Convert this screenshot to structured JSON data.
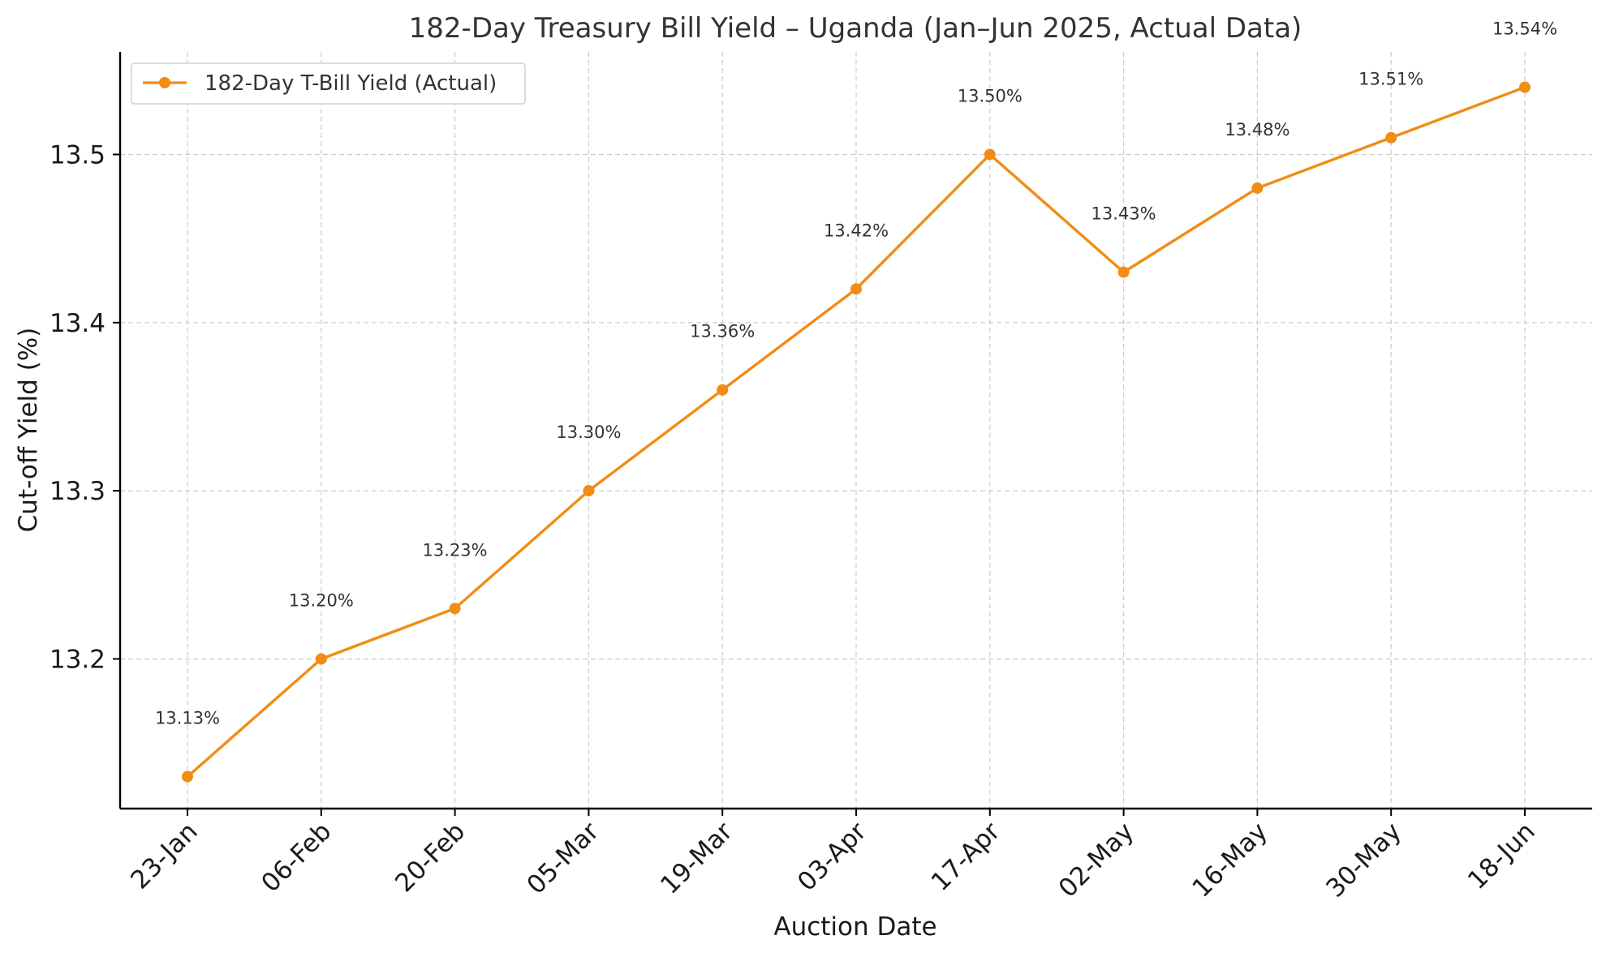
{
  "chart_data": {
    "type": "line",
    "title": "182-Day Treasury Bill Yield – Uganda (Jan–Jun 2025, Actual Data)",
    "xlabel": "Auction Date",
    "ylabel": "Cut-off Yield (%)",
    "categories": [
      "23-Jan",
      "06-Feb",
      "20-Feb",
      "05-Mar",
      "19-Mar",
      "03-Apr",
      "17-Apr",
      "02-May",
      "16-May",
      "30-May",
      "18-Jun"
    ],
    "series": [
      {
        "name": "182-Day T-Bill Yield (Actual)",
        "values": [
          13.13,
          13.2,
          13.23,
          13.3,
          13.36,
          13.42,
          13.5,
          13.43,
          13.48,
          13.51,
          13.54
        ],
        "data_labels": [
          "13.13%",
          "13.20%",
          "13.23%",
          "13.30%",
          "13.36%",
          "13.42%",
          "13.50%",
          "13.43%",
          "13.48%",
          "13.51%",
          "13.54%"
        ],
        "color": "#f28c13"
      }
    ],
    "yticks": [
      13.2,
      13.3,
      13.4,
      13.5
    ],
    "ytick_labels": [
      "13.2",
      "13.3",
      "13.4",
      "13.5"
    ],
    "ylim": [
      13.111,
      13.561
    ],
    "grid": true,
    "legend_position": "top-left"
  }
}
